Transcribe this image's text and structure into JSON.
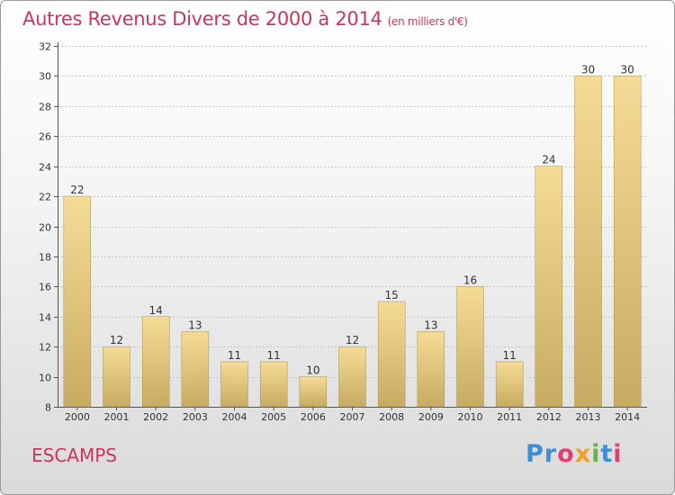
{
  "title": {
    "main": "Autres Revenus Divers de 2000 à 2014",
    "unit": "(en milliers d'€)"
  },
  "place": "ESCAMPS",
  "logo": {
    "text": "Proxiti",
    "colors": [
      "#3a8fd6",
      "#3a8fd6",
      "#e23f7a",
      "#f0a02a",
      "#6cb43f",
      "#3a8fd6",
      "#e23f7a"
    ]
  },
  "chart_data": {
    "type": "bar",
    "categories": [
      "2000",
      "2001",
      "2002",
      "2003",
      "2004",
      "2005",
      "2006",
      "2007",
      "2008",
      "2009",
      "2010",
      "2011",
      "2012",
      "2013",
      "2014"
    ],
    "values": [
      22,
      12,
      14,
      13,
      11,
      11,
      10,
      12,
      15,
      13,
      16,
      11,
      24,
      30,
      30
    ],
    "ylim": [
      8,
      32
    ],
    "yticks": [
      8,
      10,
      12,
      14,
      16,
      18,
      20,
      22,
      24,
      26,
      28,
      30,
      32
    ],
    "grid": true,
    "colors": {
      "bar_light": "#f5dc96",
      "bar_dark": "#c8ab62",
      "bar_border": "#a8904e",
      "grid": "#c4c4c4",
      "axis": "#555555",
      "text": "#333333"
    }
  }
}
